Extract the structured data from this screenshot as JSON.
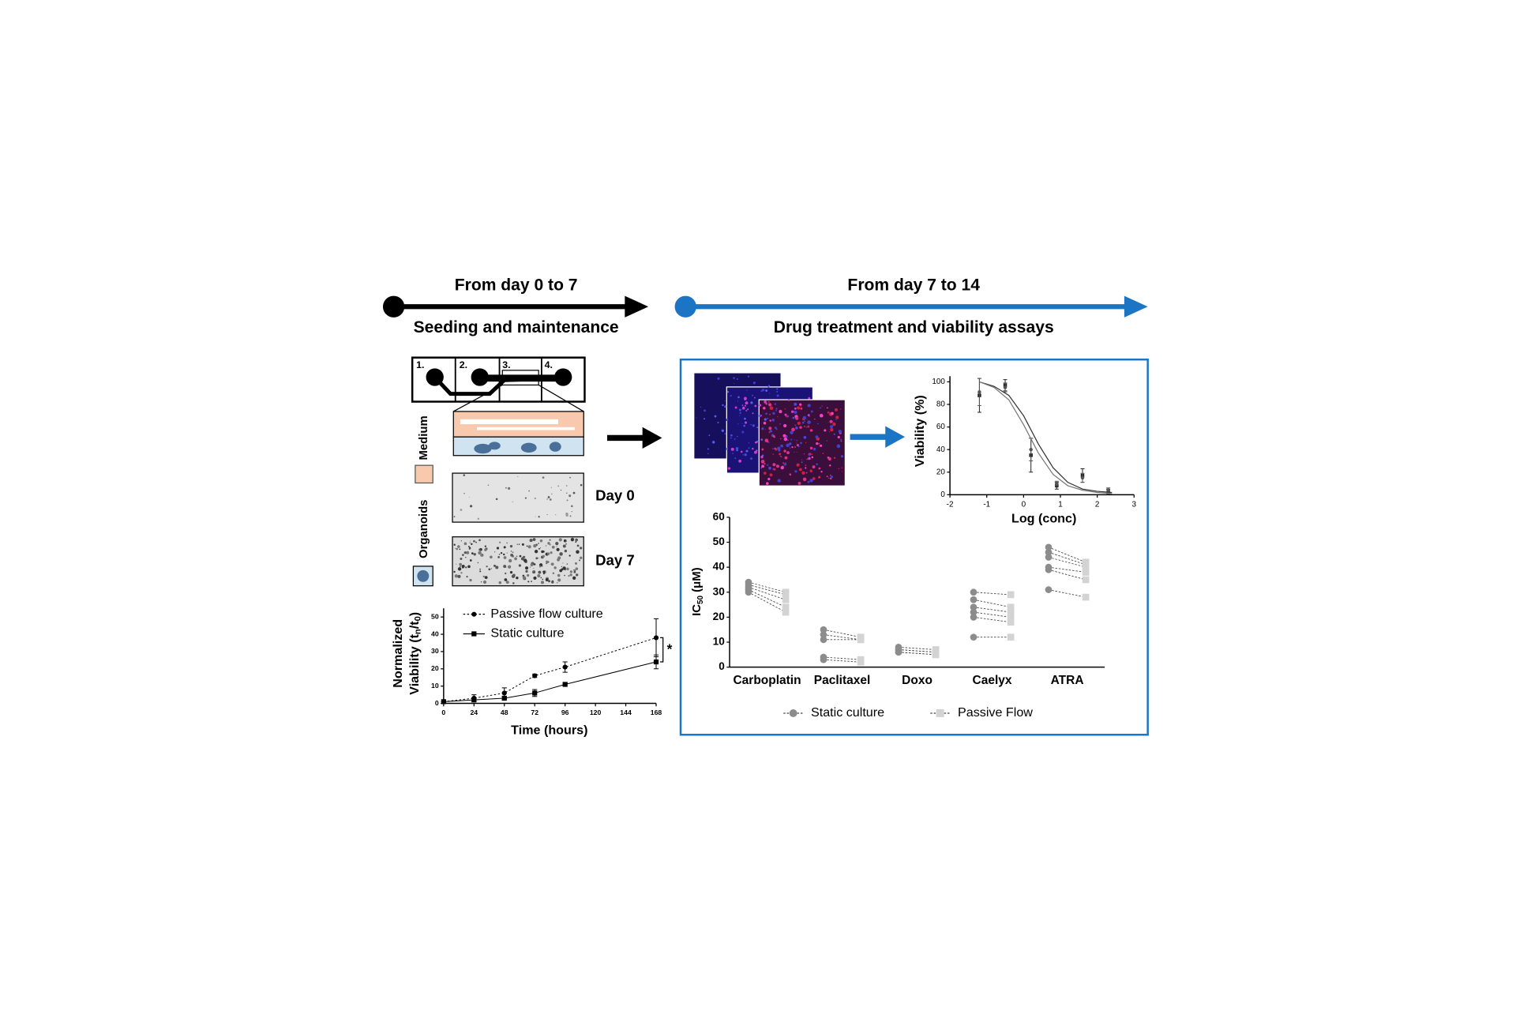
{
  "timeline": {
    "left": {
      "title": "From day 0 to 7",
      "subtitle": "Seeding and maintenance"
    },
    "right": {
      "title": "From day 7 to 14",
      "subtitle": "Drug treatment and viability assays"
    }
  },
  "chip": {
    "sections": [
      "1.",
      "2.",
      "3.",
      "4."
    ],
    "layers": [
      "Medium",
      "Organoids"
    ],
    "images": [
      "Day 0",
      "Day 7"
    ]
  },
  "chart_data": [
    {
      "type": "line",
      "x_label": "Time (hours)",
      "y_label": {
        "line1": "Normalized",
        "line2": [
          "Viability (t",
          "n",
          "/t",
          "0",
          ")"
        ]
      },
      "xlim": [
        0,
        168
      ],
      "xticks": [
        0,
        24,
        48,
        72,
        96,
        120,
        144,
        168
      ],
      "ylim": [
        0,
        55
      ],
      "yticks": [
        0,
        10,
        20,
        30,
        40,
        50
      ],
      "legend": "upper left",
      "annotation": "*",
      "series": [
        {
          "name": "Passive flow culture",
          "color": "#000000",
          "marker": "circle",
          "dash": true,
          "x": [
            0,
            24,
            48,
            72,
            96,
            168
          ],
          "values": [
            1,
            3,
            6,
            16,
            21,
            38
          ],
          "errors": [
            0,
            2,
            3,
            1,
            3,
            11
          ]
        },
        {
          "name": "Static culture",
          "color": "#000000",
          "marker": "square",
          "dash": false,
          "x": [
            0,
            24,
            48,
            72,
            96,
            168
          ],
          "values": [
            1,
            2,
            3,
            6,
            11,
            24
          ],
          "errors": [
            0,
            1,
            1,
            2,
            1,
            4
          ]
        }
      ]
    },
    {
      "type": "scatter",
      "x_label": "Log (conc)",
      "y_label": "Viability (%)",
      "xlim": [
        -2,
        3
      ],
      "xticks": [
        -2,
        -1,
        0,
        1,
        2,
        3
      ],
      "ylim": [
        0,
        105
      ],
      "yticks": [
        0,
        20,
        40,
        60,
        80,
        100
      ],
      "series": [
        {
          "color": "#222222",
          "mode": "markers",
          "x": [
            -1.2,
            -0.5,
            0.2,
            0.9,
            1.6,
            2.3
          ],
          "values": [
            88,
            97,
            35,
            8,
            17,
            3
          ],
          "errors": [
            15,
            5,
            15,
            3,
            6,
            2
          ]
        },
        {
          "color": "#555555",
          "mode": "markers",
          "x": [
            -1.2,
            -0.5,
            0.2,
            0.9,
            1.6,
            2.3
          ],
          "values": [
            91,
            95,
            40,
            10,
            15,
            4
          ],
          "errors": [
            12,
            4,
            10,
            2,
            4,
            2
          ]
        },
        {
          "color": "#333333",
          "mode": "line",
          "x": [
            -1.2,
            -0.8,
            -0.4,
            0,
            0.4,
            0.8,
            1.2,
            1.6,
            2,
            2.4
          ],
          "values": [
            100,
            96,
            88,
            70,
            45,
            24,
            11,
            5,
            3,
            2
          ]
        },
        {
          "color": "#777777",
          "mode": "line",
          "x": [
            -1.2,
            -0.8,
            -0.4,
            0,
            0.4,
            0.8,
            1.2,
            1.6,
            2,
            2.4
          ],
          "values": [
            100,
            95,
            84,
            62,
            37,
            18,
            8,
            4,
            2,
            1
          ]
        }
      ]
    },
    {
      "type": "paired",
      "y_label": [
        "IC",
        "50",
        " (μM)"
      ],
      "ylim": [
        0,
        60
      ],
      "yticks": [
        0,
        10,
        20,
        30,
        40,
        50,
        60
      ],
      "categories": [
        "Carboplatin",
        "Paclitaxel",
        "Doxo",
        "Caelyx",
        "ATRA"
      ],
      "legend": "bottom",
      "series": [
        {
          "name": "Static culture",
          "color": "#8c8c8c",
          "marker": "circle",
          "values": [
            [
              34,
              33,
              32,
              31,
              30
            ],
            [
              15,
              13,
              11,
              4,
              3
            ],
            [
              8,
              7,
              7,
              6,
              6
            ],
            [
              30,
              27,
              24,
              22,
              20,
              12
            ],
            [
              48,
              46,
              44,
              40,
              39,
              31
            ]
          ]
        },
        {
          "name": "Passive Flow",
          "color": "#d3d3d3",
          "marker": "square",
          "values": [
            [
              30,
              29,
              27,
              24,
              22
            ],
            [
              12,
              11,
              11,
              3,
              2
            ],
            [
              7,
              6,
              6,
              5,
              5
            ],
            [
              29,
              24,
              22,
              20,
              18,
              12
            ],
            [
              42,
              41,
              40,
              38,
              35,
              28
            ]
          ]
        }
      ]
    }
  ]
}
